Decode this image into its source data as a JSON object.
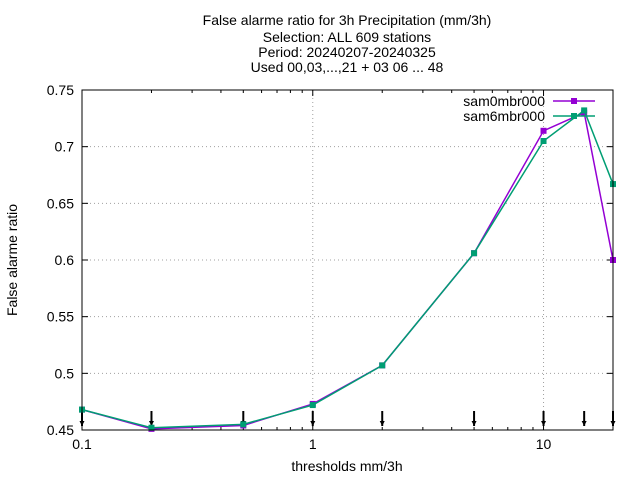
{
  "chart_data": {
    "type": "line",
    "title_lines": [
      "False alarme ratio  for 3h Precipitation (mm/3h)",
      "Selection: ALL    609 stations",
      "Period: 20240207-20240325",
      "Used 00,03,...,21 + 03 06 ... 48"
    ],
    "xlabel": "thresholds mm/3h",
    "ylabel": "False alarme ratio",
    "x_scale": "log",
    "xlim": [
      0.1,
      20
    ],
    "ylim": [
      0.45,
      0.75
    ],
    "x_ticks": [
      0.1,
      1,
      10
    ],
    "x_tick_labels": [
      "0.1",
      "1",
      "10"
    ],
    "y_ticks": [
      0.45,
      0.5,
      0.55,
      0.6,
      0.65,
      0.7,
      0.75
    ],
    "y_tick_labels": [
      "0.45",
      "0.5",
      "0.55",
      "0.6",
      "0.65",
      "0.7",
      "0.75"
    ],
    "grid": true,
    "legend_position": "top-right",
    "x": [
      0.1,
      0.2,
      0.5,
      1,
      2,
      5,
      10,
      15,
      20
    ],
    "threshold_markers": [
      0.1,
      0.2,
      0.5,
      1,
      2,
      5,
      10,
      15,
      20
    ],
    "series": [
      {
        "name": "sam0mbr000",
        "color": "#9400d3",
        "values": [
          0.468,
          0.451,
          0.454,
          0.473,
          0.507,
          0.606,
          0.714,
          0.73,
          0.6
        ]
      },
      {
        "name": "sam6mbr000",
        "color": "#009e73",
        "values": [
          0.468,
          0.452,
          0.455,
          0.472,
          0.507,
          0.606,
          0.705,
          0.732,
          0.667
        ]
      }
    ]
  }
}
